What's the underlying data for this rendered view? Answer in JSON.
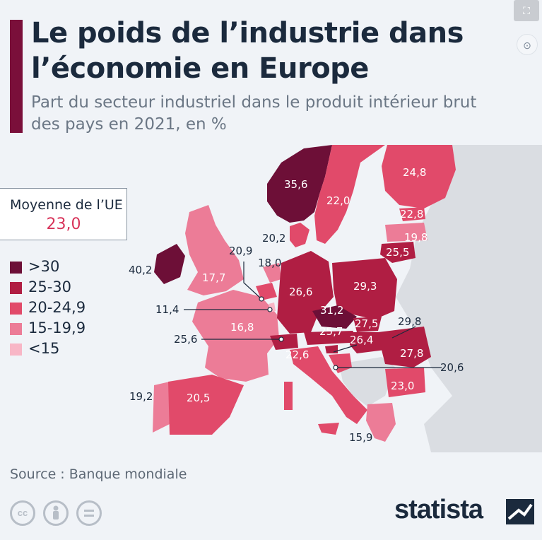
{
  "header": {
    "title": "Le poids de l’industrie dans l’économie en Europe",
    "subtitle": "Part du secteur industriel dans le produit intérieur brut des pays en 2021, en %"
  },
  "toolbar": {
    "fullscreen_icon": "fullscreen-icon",
    "zoom_icon": "zoom-icon"
  },
  "eu_average": {
    "label": "Moyenne de l’UE",
    "value": "23,0"
  },
  "legend": [
    {
      "label": ">30",
      "color": "#6d0f37"
    },
    {
      "label": "25-30",
      "color": "#b01e43"
    },
    {
      "label": "20-24,9",
      "color": "#e14a6a"
    },
    {
      "label": "15-19,9",
      "color": "#ec7c97"
    },
    {
      "label": "<15",
      "color": "#f8b6c6"
    }
  ],
  "map_labels": [
    {
      "id": "norvege",
      "text": "35,6",
      "color": "#ffffff"
    },
    {
      "id": "finlande",
      "text": "24,8",
      "color": "#ffffff"
    },
    {
      "id": "suede",
      "text": "22,0",
      "color": "#ffffff"
    },
    {
      "id": "estonie",
      "text": "22,8",
      "color": "#ffffff"
    },
    {
      "id": "lettonie",
      "text": "19,8",
      "color": "#ffffff"
    },
    {
      "id": "lituanie",
      "text": "25,5",
      "color": "#ffffff"
    },
    {
      "id": "danemark",
      "text": "20,2",
      "color": "#1b2a3d"
    },
    {
      "id": "irlande",
      "text": "40,2",
      "color": "#1b2a3d"
    },
    {
      "id": "royaume-uni",
      "text": "17,7",
      "color": "#ffffff"
    },
    {
      "id": "belgique",
      "text": "20,9",
      "color": "#1b2a3d"
    },
    {
      "id": "pays-bas",
      "text": "18,0",
      "color": "#1b2a3d"
    },
    {
      "id": "allemagne",
      "text": "26,6",
      "color": "#ffffff"
    },
    {
      "id": "pologne",
      "text": "29,3",
      "color": "#ffffff"
    },
    {
      "id": "luxembourg",
      "text": "11,4",
      "color": "#1b2a3d"
    },
    {
      "id": "tchequie",
      "text": "31,2",
      "color": "#ffffff"
    },
    {
      "id": "slovaquie",
      "text": "27,5",
      "color": "#ffffff"
    },
    {
      "id": "france",
      "text": "16,8",
      "color": "#ffffff"
    },
    {
      "id": "autriche",
      "text": "25,7",
      "color": "#ffffff"
    },
    {
      "id": "hongrie",
      "text": "26,4",
      "color": "#ffffff"
    },
    {
      "id": "slovenie",
      "text": "29,8",
      "color": "#1b2a3d"
    },
    {
      "id": "suisse",
      "text": "25,6",
      "color": "#1b2a3d"
    },
    {
      "id": "italie",
      "text": "22,6",
      "color": "#ffffff"
    },
    {
      "id": "roumanie",
      "text": "27,8",
      "color": "#ffffff"
    },
    {
      "id": "croatie",
      "text": "20,6",
      "color": "#1b2a3d"
    },
    {
      "id": "bulgarie",
      "text": "23,0",
      "color": "#ffffff"
    },
    {
      "id": "portugal",
      "text": "19,2",
      "color": "#1b2a3d"
    },
    {
      "id": "espagne",
      "text": "20,5",
      "color": "#ffffff"
    },
    {
      "id": "grece",
      "text": "15,9",
      "color": "#1b2a3d"
    }
  ],
  "footer": {
    "source": "Source : Banque mondiale",
    "license_icons": [
      "cc-icon",
      "by-icon",
      "nd-icon"
    ],
    "brand": "statista"
  }
}
